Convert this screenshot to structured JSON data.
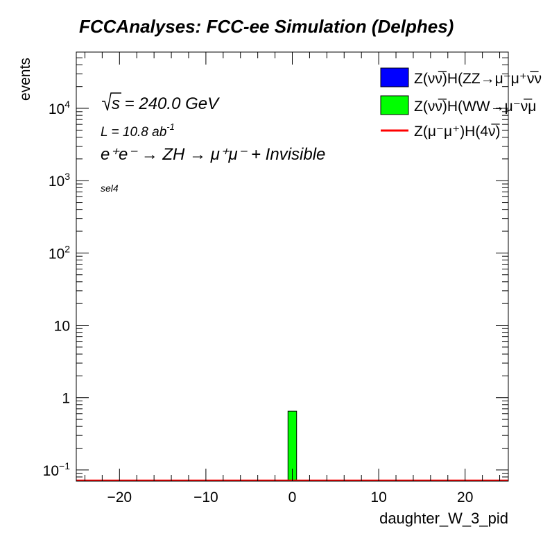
{
  "chart_data": {
    "type": "bar",
    "title": "FCCAnalyses: FCC-ee Simulation (Delphes)",
    "xlabel": "daughter_W_3_pid",
    "ylabel": "events",
    "xlim": [
      -25,
      25
    ],
    "ylim": [
      0.07,
      60000
    ],
    "log_y": true,
    "x_ticks": [
      {
        "value": -20,
        "label": "−20"
      },
      {
        "value": -10,
        "label": "−10"
      },
      {
        "value": 0,
        "label": "0"
      },
      {
        "value": 10,
        "label": "10"
      },
      {
        "value": 20,
        "label": "20"
      }
    ],
    "y_ticks": [
      {
        "value": 0.1,
        "base": "10",
        "exp": "−1"
      },
      {
        "value": 1,
        "base": "1",
        "exp": ""
      },
      {
        "value": 10,
        "base": "10",
        "exp": ""
      },
      {
        "value": 100,
        "base": "10",
        "exp": "2"
      },
      {
        "value": 1000,
        "base": "10",
        "exp": "3"
      },
      {
        "value": 10000,
        "base": "10",
        "exp": "4"
      }
    ],
    "annotations": {
      "sqrt_s": "s = 240.0 GeV",
      "luminosity": "L = 10.8 ab",
      "luminosity_exp": "-1",
      "process": "e⁺e⁻ → ZH → μ⁺μ⁻ + Invisible",
      "selection": "sel4"
    },
    "legend_position": "top-right",
    "series": [
      {
        "name": "Z(νν̅)H(ZZ→μ⁻μ⁺ν̅ν",
        "color": "#0000ff",
        "style": "fill",
        "bins": []
      },
      {
        "name": "Z(νν̅)H(WW→μ⁻ν̅μ",
        "color": "#00ff00",
        "style": "fill",
        "bins": [
          {
            "x_low": -0.5,
            "x_high": 0.5,
            "value": 0.65
          }
        ]
      },
      {
        "name": "Z(μ⁻μ⁺)H(4ν̅)",
        "color": "#ff0000",
        "style": "line",
        "bins": []
      }
    ]
  }
}
